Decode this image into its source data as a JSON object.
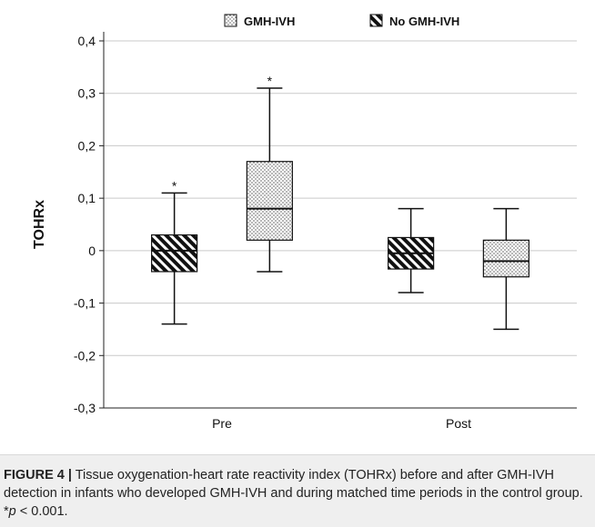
{
  "chart_data": {
    "type": "box",
    "categories": [
      "Pre",
      "Post"
    ],
    "ylabel": "TOHRx",
    "ylim": [
      -0.3,
      0.4
    ],
    "yticks": [
      {
        "v": 0.4,
        "label": "0,4"
      },
      {
        "v": 0.3,
        "label": "0,3"
      },
      {
        "v": 0.2,
        "label": "0,2"
      },
      {
        "v": 0.1,
        "label": "0,1"
      },
      {
        "v": 0,
        "label": "0"
      },
      {
        "v": -0.1,
        "label": "-0,1"
      },
      {
        "v": -0.2,
        "label": "-0,2"
      },
      {
        "v": -0.3,
        "label": "-0,3"
      }
    ],
    "grid": true,
    "legend_position": "top",
    "series": [
      {
        "name": "GMH-IVH",
        "pattern": "dots"
      },
      {
        "name": "No GMH-IVH",
        "pattern": "hatch"
      }
    ],
    "boxes": [
      {
        "category": "Pre",
        "series": "No GMH-IVH",
        "min": -0.14,
        "q1": -0.04,
        "median": 0.0,
        "q3": 0.03,
        "max": 0.11,
        "outlier_mark": "*"
      },
      {
        "category": "Pre",
        "series": "GMH-IVH",
        "min": -0.04,
        "q1": 0.02,
        "median": 0.08,
        "q3": 0.17,
        "max": 0.31,
        "outlier_mark": "*"
      },
      {
        "category": "Post",
        "series": "No GMH-IVH",
        "min": -0.08,
        "q1": -0.035,
        "median": -0.005,
        "q3": 0.025,
        "max": 0.08
      },
      {
        "category": "Post",
        "series": "GMH-IVH",
        "min": -0.15,
        "q1": -0.05,
        "median": -0.02,
        "q3": 0.02,
        "max": 0.08
      }
    ]
  },
  "caption": {
    "label": "FIGURE 4 |",
    "text": " Tissue oxygenation-heart rate reactivity index (TOHRx) before and after GMH-IVH detection in infants who developed GMH-IVH and during matched time periods in the control group. *",
    "p_symbol": "p",
    "p_rest": " < 0.001."
  }
}
